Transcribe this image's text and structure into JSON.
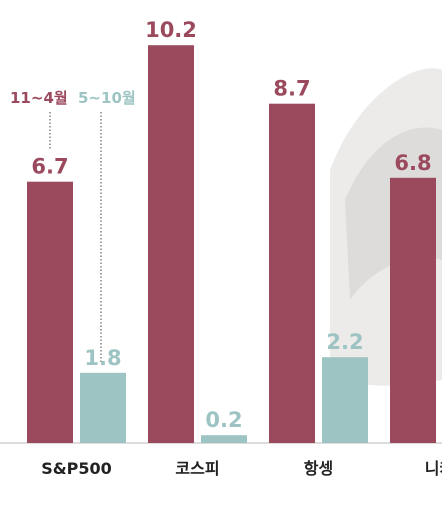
{
  "chart_data": {
    "type": "bar",
    "categories": [
      "S&P500",
      "코스피",
      "항셍",
      "니케"
    ],
    "series": [
      {
        "name": "11~4월",
        "color": "#9b4a5e",
        "values": [
          6.7,
          10.2,
          8.7,
          6.8
        ]
      },
      {
        "name": "5~10월",
        "color": "#9dc4c3",
        "values": [
          1.8,
          0.2,
          2.2,
          null
        ]
      }
    ],
    "ylim": [
      0,
      11
    ]
  }
}
